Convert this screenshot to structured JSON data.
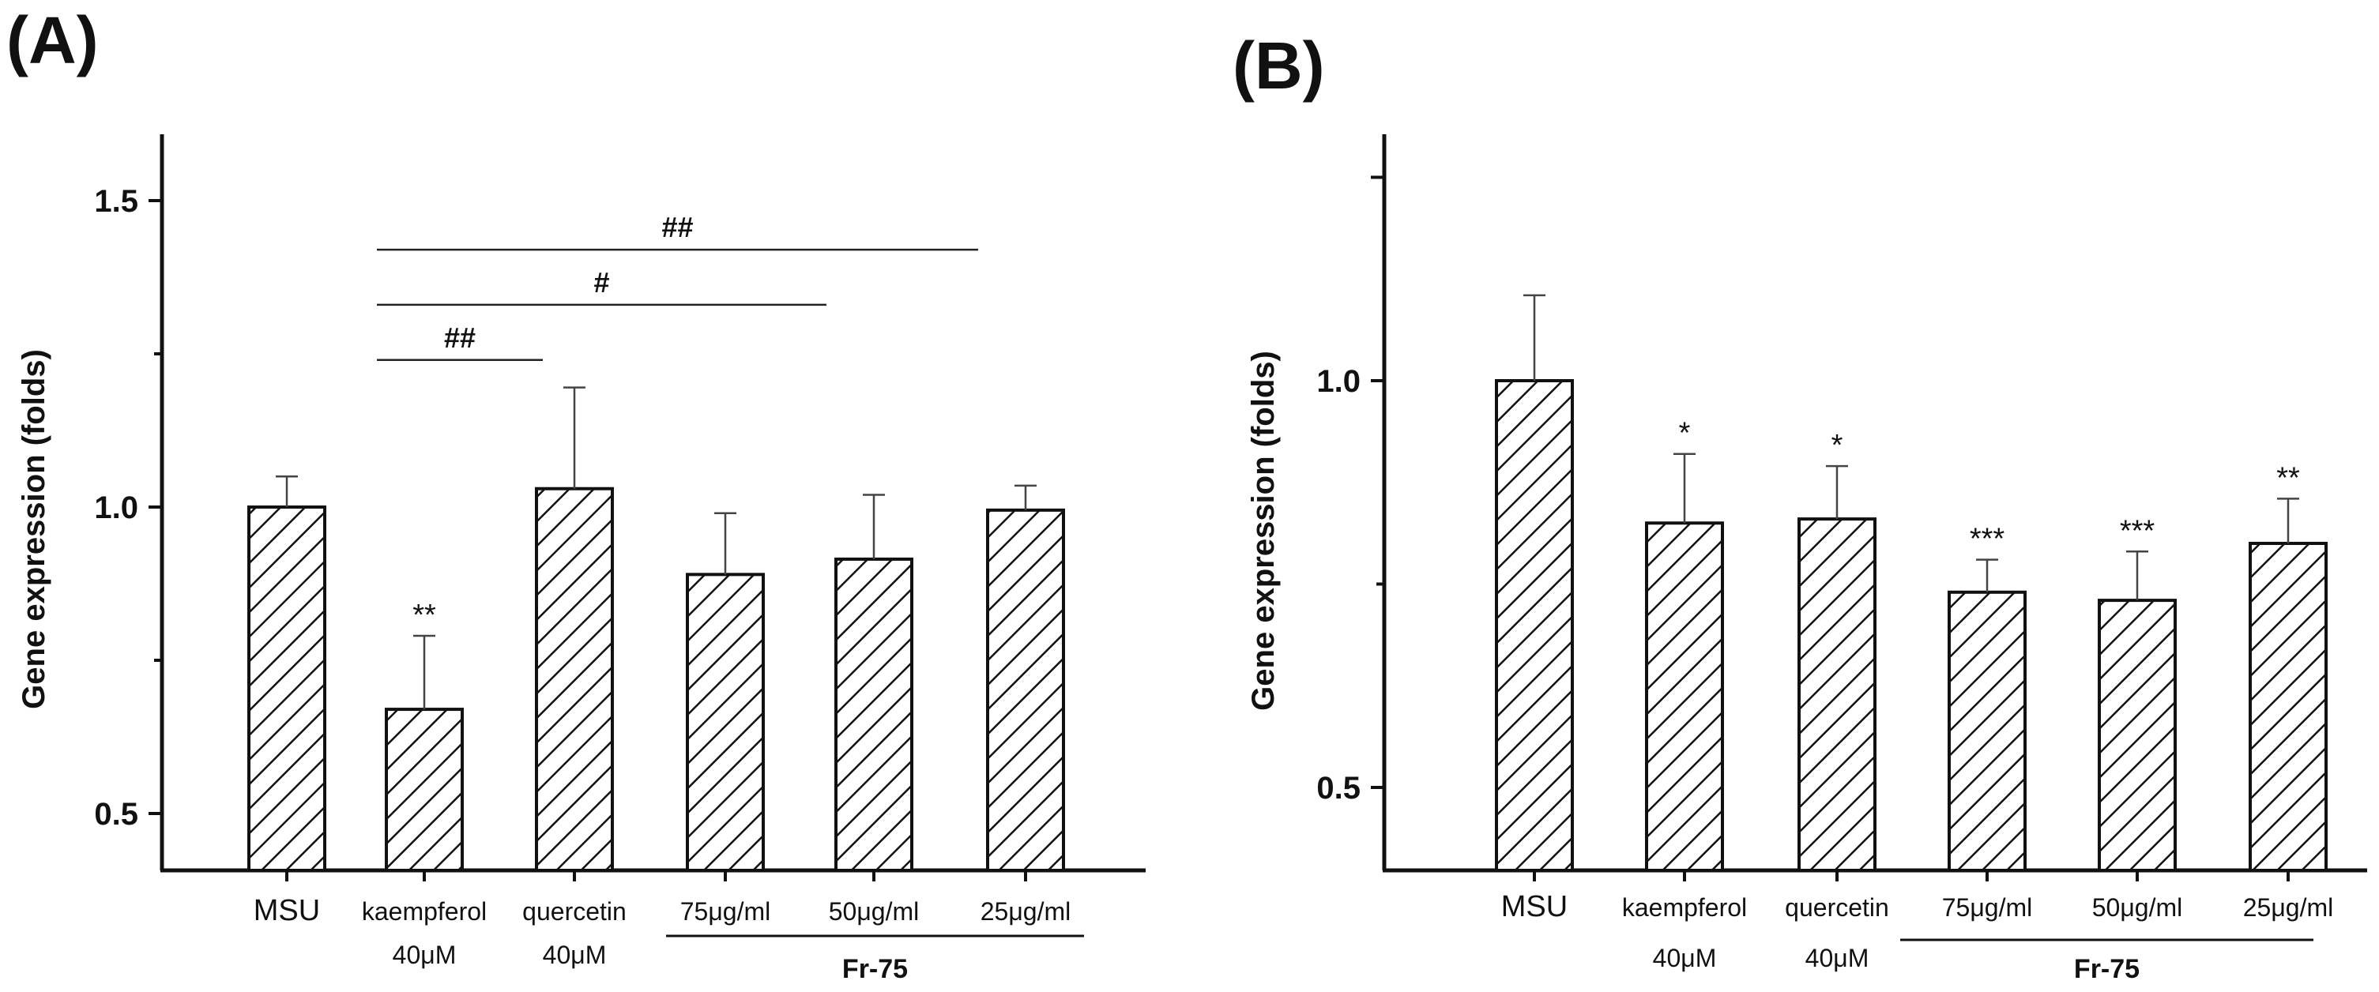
{
  "chart_data": [
    {
      "panel": "(A)",
      "type": "bar",
      "ylabel": "Gene expression (folds)",
      "ylim": [
        0.4,
        1.6
      ],
      "yticks": [
        "0.5",
        "1.0",
        "1.5"
      ],
      "categories": [
        [
          "MSU"
        ],
        [
          "kaempferol",
          "40μM"
        ],
        [
          "quercetin",
          "40μM"
        ],
        [
          "75μg/ml"
        ],
        [
          "50μg/ml"
        ],
        [
          "25μg/ml"
        ]
      ],
      "values": [
        1.0,
        0.67,
        1.03,
        0.89,
        0.915,
        0.995
      ],
      "errors": [
        0.05,
        0.12,
        0.165,
        0.1,
        0.105,
        0.04
      ],
      "significance": [
        "",
        "**",
        "",
        "",
        "",
        ""
      ],
      "comparisons": [
        {
          "from": 1,
          "to": 2,
          "label": "##",
          "y": 1.24
        },
        {
          "from": 1,
          "to": 4,
          "label": "#",
          "y": 1.33
        },
        {
          "from": 1,
          "to": 5,
          "label": "##",
          "y": 1.42
        }
      ],
      "group": {
        "label": "Fr-75",
        "from": 3,
        "to": 5
      }
    },
    {
      "panel": "(B)",
      "type": "bar",
      "ylabel": "Gene expression (folds)",
      "ylim": [
        0.4,
        1.3
      ],
      "yticks": [
        "0.5",
        "1.0"
      ],
      "categories": [
        [
          "MSU"
        ],
        [
          "kaempferol",
          "40μM"
        ],
        [
          "quercetin",
          "40μM"
        ],
        [
          "75μg/ml"
        ],
        [
          "50μg/ml"
        ],
        [
          "25μg/ml"
        ]
      ],
      "values": [
        1.0,
        0.825,
        0.83,
        0.74,
        0.73,
        0.8
      ],
      "errors": [
        0.105,
        0.085,
        0.065,
        0.04,
        0.06,
        0.055
      ],
      "significance": [
        "",
        "*",
        "*",
        "***",
        "***",
        "**"
      ],
      "comparisons": [],
      "group": {
        "label": "Fr-75",
        "from": 3,
        "to": 5
      }
    }
  ]
}
